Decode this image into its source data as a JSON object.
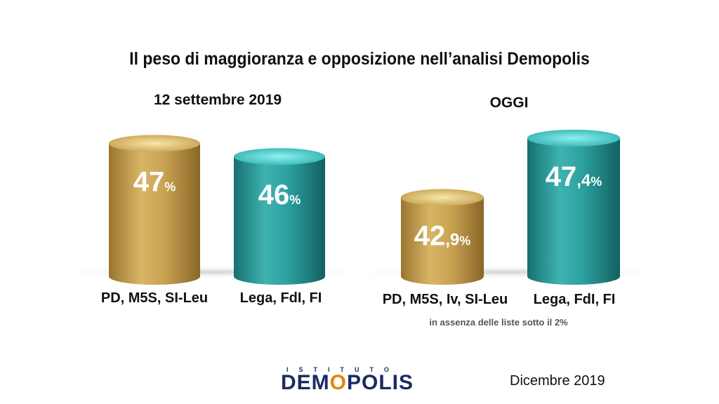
{
  "title": "Il peso di maggioranza e opposizione nell’analisi Demopolis",
  "groups": [
    {
      "label": "12 settembre 2019"
    },
    {
      "label": "OGGI"
    }
  ],
  "note": "in assenza delle liste sotto il 2%",
  "logo": {
    "top": "ISTITUTO",
    "main_pre": "DEM",
    "main_o": "O",
    "main_post": "POLIS"
  },
  "date": "Dicembre 2019",
  "colors": {
    "gold": "#c9a24a",
    "teal": "#2f9fa0"
  },
  "chart_data": {
    "type": "bar",
    "unit": "%",
    "bars": [
      {
        "group": "12 settembre 2019",
        "category": "PD, M5S, SI-Leu",
        "value": 47,
        "label_main": "47",
        "label_dec": "",
        "color": "gold"
      },
      {
        "group": "12 settembre 2019",
        "category": "Lega, FdI, FI",
        "value": 46,
        "label_main": "46",
        "label_dec": "",
        "color": "teal"
      },
      {
        "group": "OGGI",
        "category": "PD, M5S, Iv, SI-Leu",
        "value": 42.9,
        "label_main": "42",
        "label_dec": ",9",
        "color": "gold"
      },
      {
        "group": "OGGI",
        "category": "Lega, FdI, FI",
        "value": 47.4,
        "label_main": "47",
        "label_dec": ",4",
        "color": "teal"
      }
    ]
  }
}
